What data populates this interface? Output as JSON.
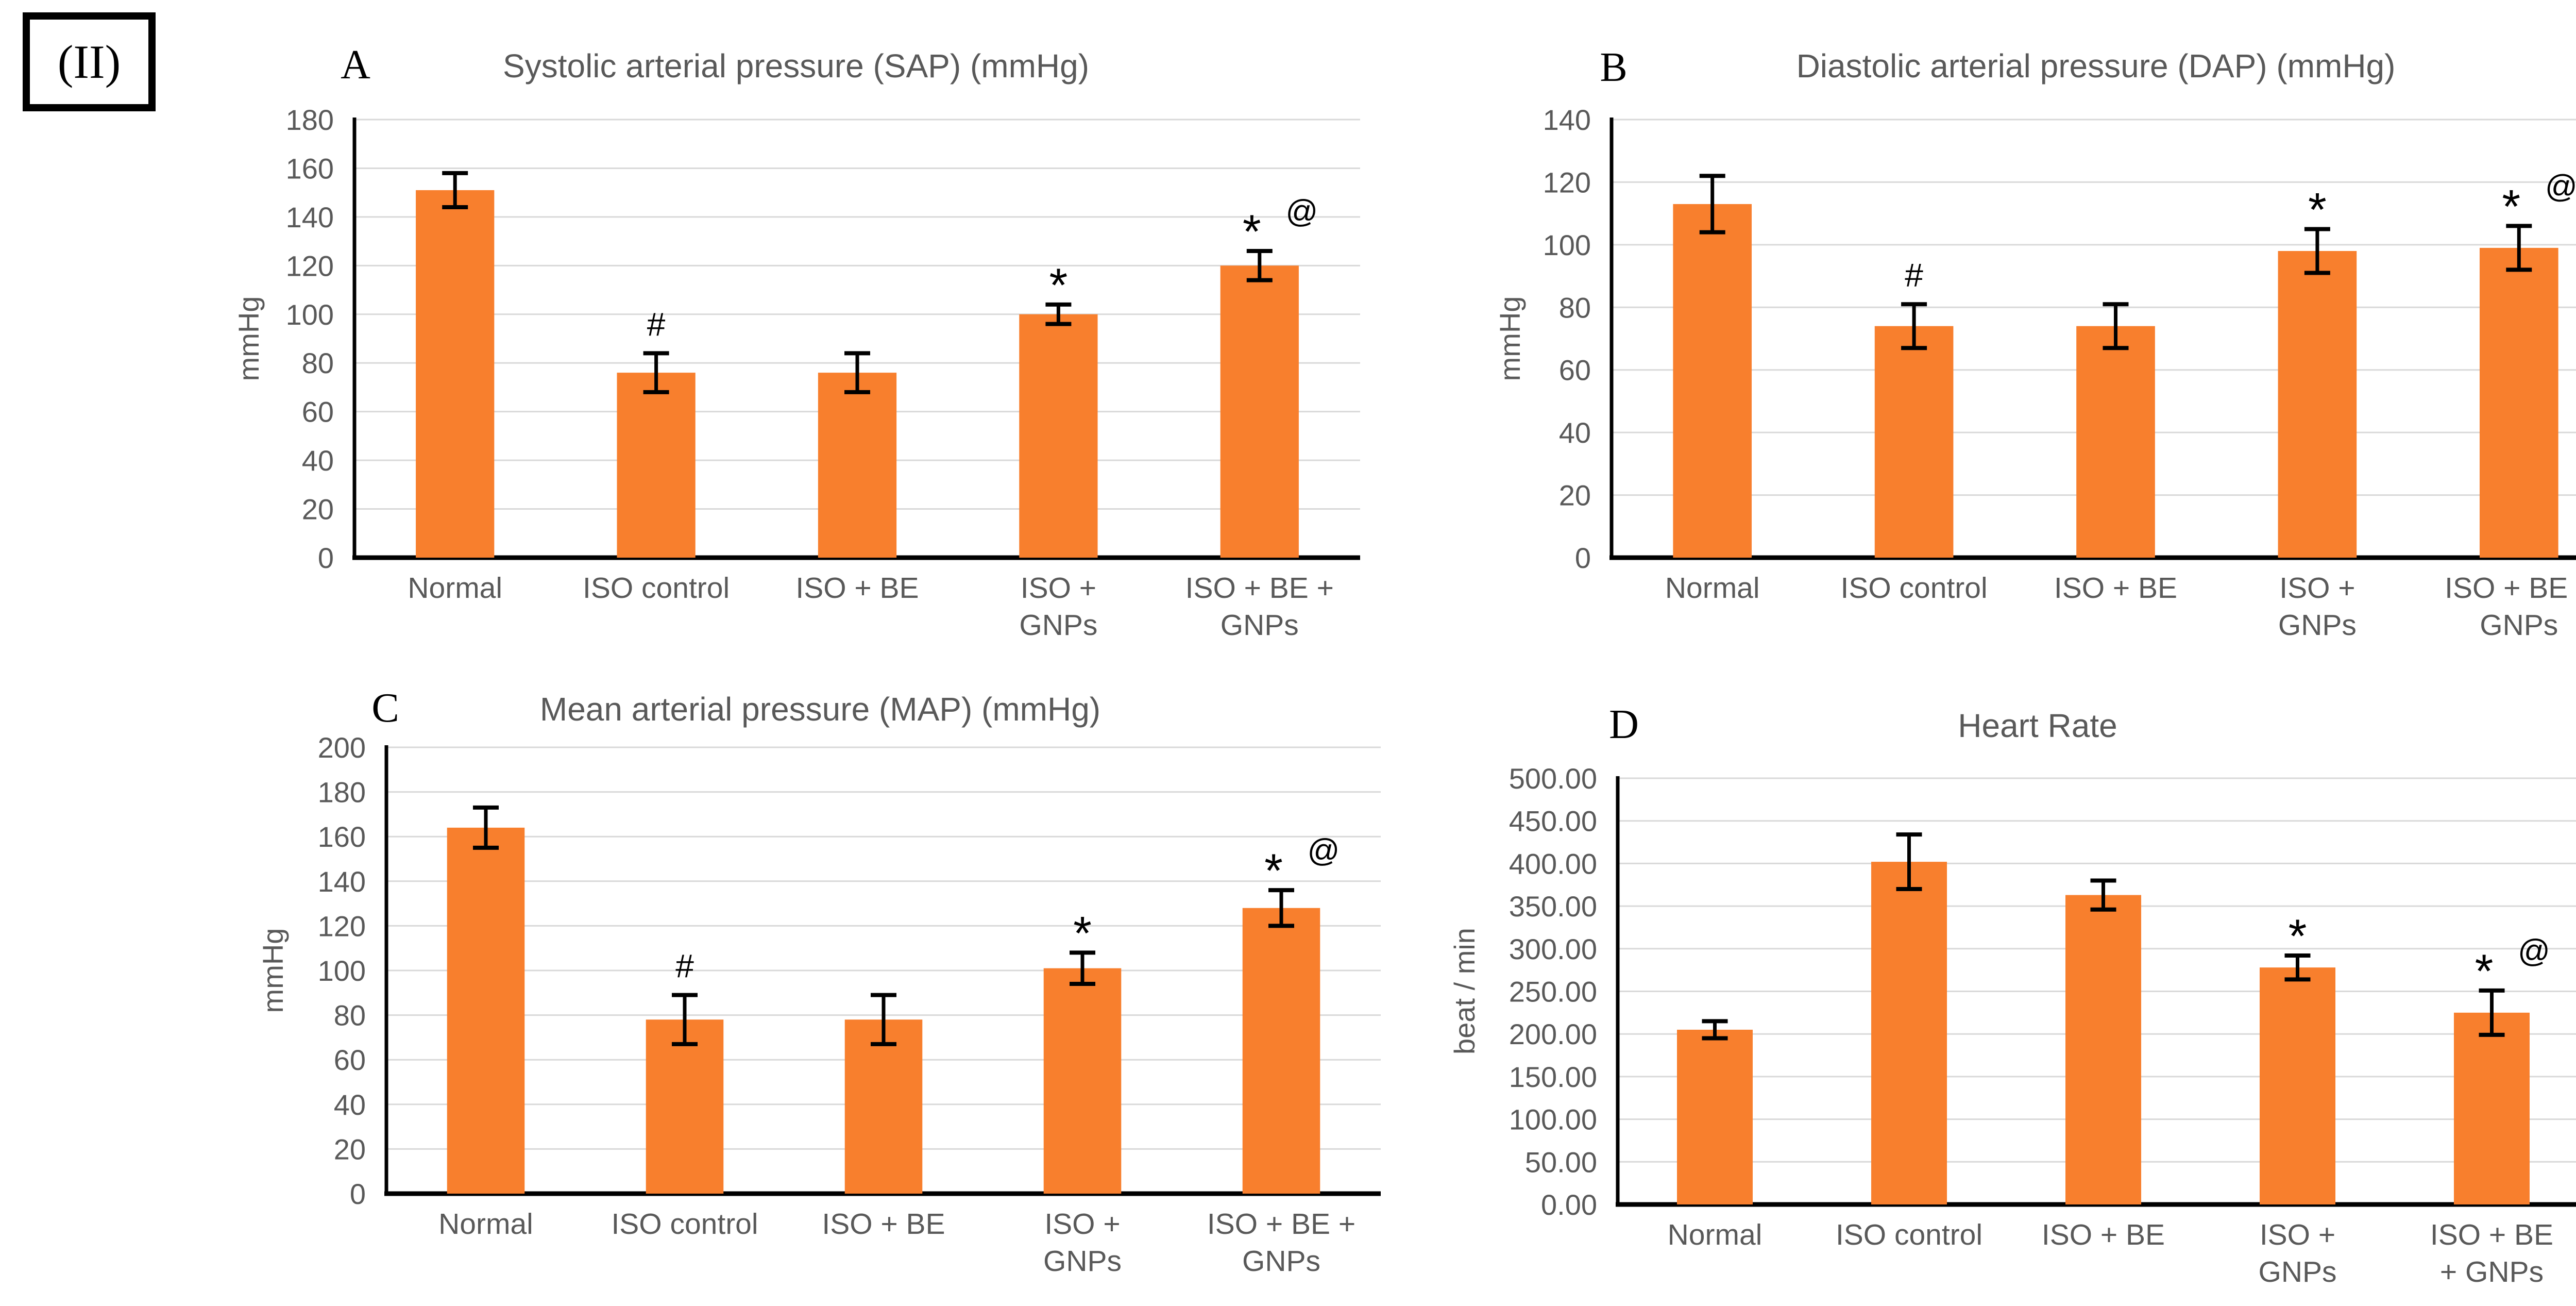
{
  "figure_label": "(II)",
  "colors": {
    "bar": "#F87F2D",
    "grid": "#D9D9D9",
    "axis": "#000000",
    "text": "#595959",
    "marker": "#000000",
    "background": "#FFFFFF"
  },
  "chart_data": [
    {
      "panel": "A",
      "type": "bar",
      "title": "Systolic arterial pressure (SAP) (mmHg)",
      "xlabel": "",
      "ylabel": "mmHg",
      "ylim": [
        0,
        180
      ],
      "ystep": 20,
      "grid": true,
      "ytick_labels": [
        "0",
        "20",
        "40",
        "60",
        "80",
        "100",
        "120",
        "140",
        "160",
        "180"
      ],
      "categories": [
        [
          "Normal"
        ],
        [
          "ISO control"
        ],
        [
          "ISO + BE"
        ],
        [
          "ISO +",
          "GNPs"
        ],
        [
          "ISO + BE +",
          "GNPs"
        ]
      ],
      "values": [
        151,
        76,
        76,
        100,
        120
      ],
      "errors": [
        7,
        8,
        8,
        4,
        6
      ],
      "markers": [
        "",
        "#",
        "",
        "*",
        "*@"
      ]
    },
    {
      "panel": "B",
      "type": "bar",
      "title": "Diastolic arterial pressure (DAP) (mmHg)",
      "xlabel": "",
      "ylabel": "mmHg",
      "ylim": [
        0,
        140
      ],
      "ystep": 20,
      "grid": true,
      "ytick_labels": [
        "0",
        "20",
        "40",
        "60",
        "80",
        "100",
        "120",
        "140"
      ],
      "categories": [
        [
          "Normal"
        ],
        [
          "ISO control"
        ],
        [
          "ISO + BE"
        ],
        [
          "ISO +",
          "GNPs"
        ],
        [
          "ISO + BE +",
          "GNPs"
        ]
      ],
      "values": [
        113,
        74,
        74,
        98,
        99
      ],
      "errors": [
        9,
        7,
        7,
        7,
        7
      ],
      "markers": [
        "",
        "#",
        "",
        "*",
        "*@"
      ]
    },
    {
      "panel": "C",
      "type": "bar",
      "title": "Mean arterial pressure (MAP) (mmHg)",
      "xlabel": "",
      "ylabel": "mmHg",
      "ylim": [
        0,
        200
      ],
      "ystep": 20,
      "grid": true,
      "ytick_labels": [
        "0",
        "20",
        "40",
        "60",
        "80",
        "100",
        "120",
        "140",
        "160",
        "180",
        "200"
      ],
      "categories": [
        [
          "Normal"
        ],
        [
          "ISO control"
        ],
        [
          "ISO + BE"
        ],
        [
          "ISO +",
          "GNPs"
        ],
        [
          "ISO + BE +",
          "GNPs"
        ]
      ],
      "values": [
        164,
        78,
        78,
        101,
        128
      ],
      "errors": [
        9,
        11,
        11,
        7,
        8
      ],
      "markers": [
        "",
        "#",
        "",
        "*",
        "*@"
      ]
    },
    {
      "panel": "D",
      "type": "bar",
      "title": "Heart Rate",
      "xlabel": "",
      "ylabel": "beat / min",
      "ylim": [
        0,
        500
      ],
      "ystep": 50,
      "grid": true,
      "ytick_labels": [
        "0.00",
        "50.00",
        "100.00",
        "150.00",
        "200.00",
        "250.00",
        "300.00",
        "350.00",
        "400.00",
        "450.00",
        "500.00"
      ],
      "categories": [
        [
          "Normal"
        ],
        [
          "ISO control"
        ],
        [
          "ISO + BE"
        ],
        [
          "ISO +",
          "GNPs"
        ],
        [
          "ISO + BE",
          "+ GNPs"
        ]
      ],
      "values": [
        205,
        402,
        363,
        278,
        225
      ],
      "errors": [
        10,
        32,
        17,
        14,
        26
      ],
      "markers": [
        "",
        "",
        "",
        "*",
        "*@"
      ]
    }
  ]
}
